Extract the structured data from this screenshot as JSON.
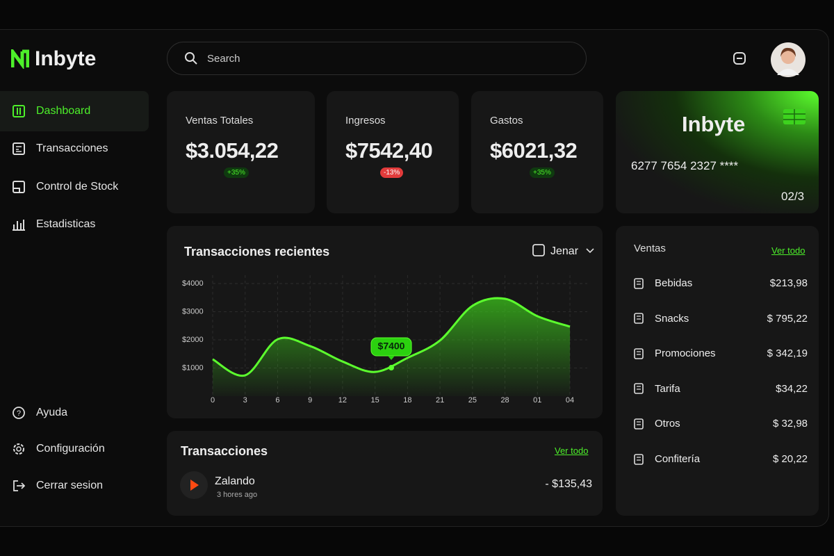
{
  "brand": "Inbyte",
  "search": "Search",
  "nav": [
    "Dashboard",
    "Transacciones",
    "Control de Stock",
    "Estadisticas"
  ],
  "nav_bottom": [
    "Ayuda",
    "Configuración",
    "Cerrar sesion"
  ],
  "stats": [
    {
      "label": "Ventas Totales",
      "value": "$3.054,22",
      "change": "+35%"
    },
    {
      "label": "Ingresos",
      "value": "$7542,40",
      "change": "-13%"
    },
    {
      "label": "Gastos",
      "value": "$6021,32",
      "change": "+35%"
    }
  ],
  "card": {
    "brand": "Inbyte",
    "number": "6277 7654 2327 ****",
    "expiry": "02/3"
  },
  "ventas": {
    "title": "Ventas",
    "link": "Ver todo",
    "items": [
      {
        "name": "Bebidas",
        "amount": "$213,98"
      },
      {
        "name": "Snacks",
        "amount": "$ 795,22"
      },
      {
        "name": "Promociones",
        "amount": "$ 342,19"
      },
      {
        "name": "Tarifa",
        "amount": "$34,22"
      },
      {
        "name": "Otros",
        "amount": "$ 32,98"
      },
      {
        "name": "Confitería",
        "amount": "$ 20,22"
      }
    ]
  },
  "transactions": {
    "title": "Transacciones",
    "link": "Ver todo",
    "items": [
      {
        "name": "Zalando",
        "time": "3 hores ago",
        "amount": "- $135,43"
      }
    ]
  },
  "chart_data": {
    "type": "line",
    "title": "Transacciones recientes",
    "period": "Jenar",
    "categories": [
      "0",
      "3",
      "6",
      "9",
      "12",
      "15",
      "18",
      "21",
      "25",
      "28",
      "01",
      "04"
    ],
    "values": [
      1310,
      740,
      2020,
      1780,
      1230,
      860,
      1360,
      1980,
      3210,
      3460,
      2840,
      2470
    ],
    "color": "#5cff2e",
    "ylim": [
      0,
      4300
    ],
    "yticks": [
      {
        "value": 1000,
        "label": "$1000"
      },
      {
        "value": 2000,
        "label": "$2000"
      },
      {
        "value": 3000,
        "label": "$3000"
      },
      {
        "value": 4000,
        "label": "$4000"
      }
    ],
    "annotation": "$7400",
    "grid": true
  }
}
